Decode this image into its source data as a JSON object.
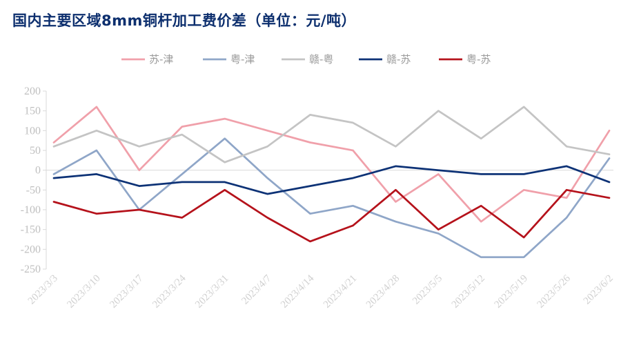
{
  "title": "国内主要区域8mm铜杆加工费价差（单位：元/吨）",
  "chart_data": {
    "type": "line",
    "title": "国内主要区域8mm铜杆加工费价差（单位：元/吨）",
    "x": [
      "2023/3/3",
      "2023/3/10",
      "2023/3/17",
      "2023/3/24",
      "2023/3/31",
      "2023/4/7",
      "2023/4/14",
      "2023/4/21",
      "2023/4/28",
      "2023/5/5",
      "2023/5/12",
      "2023/5/19",
      "2023/5/26",
      "2023/6/2"
    ],
    "ylim": [
      -250,
      200
    ],
    "yticks": [
      200,
      150,
      100,
      50,
      0,
      -50,
      -100,
      -150,
      -200,
      -250
    ],
    "legend_position": "top",
    "grid": false,
    "series": [
      {
        "name": "苏-津",
        "color": "#f0a0aa",
        "values": [
          70,
          160,
          0,
          110,
          130,
          100,
          70,
          50,
          -80,
          -10,
          -130,
          -50,
          -70,
          100
        ]
      },
      {
        "name": "粤-津",
        "color": "#8fa6c8",
        "values": [
          -10,
          50,
          -100,
          -10,
          80,
          -20,
          -110,
          -90,
          -130,
          -160,
          -220,
          -220,
          -120,
          30
        ]
      },
      {
        "name": "赣-粤",
        "color": "#c4c4c4",
        "values": [
          60,
          100,
          60,
          90,
          20,
          60,
          140,
          120,
          60,
          150,
          80,
          160,
          60,
          40
        ]
      },
      {
        "name": "赣-苏",
        "color": "#0d3276",
        "values": [
          -20,
          -10,
          -40,
          -30,
          -30,
          -60,
          -40,
          -20,
          10,
          0,
          -10,
          -10,
          10,
          -30
        ]
      },
      {
        "name": "粤-苏",
        "color": "#b5121b",
        "values": [
          -80,
          -110,
          -100,
          -120,
          -50,
          -120,
          -180,
          -140,
          -50,
          -150,
          -90,
          -170,
          -50,
          -70
        ]
      }
    ]
  }
}
